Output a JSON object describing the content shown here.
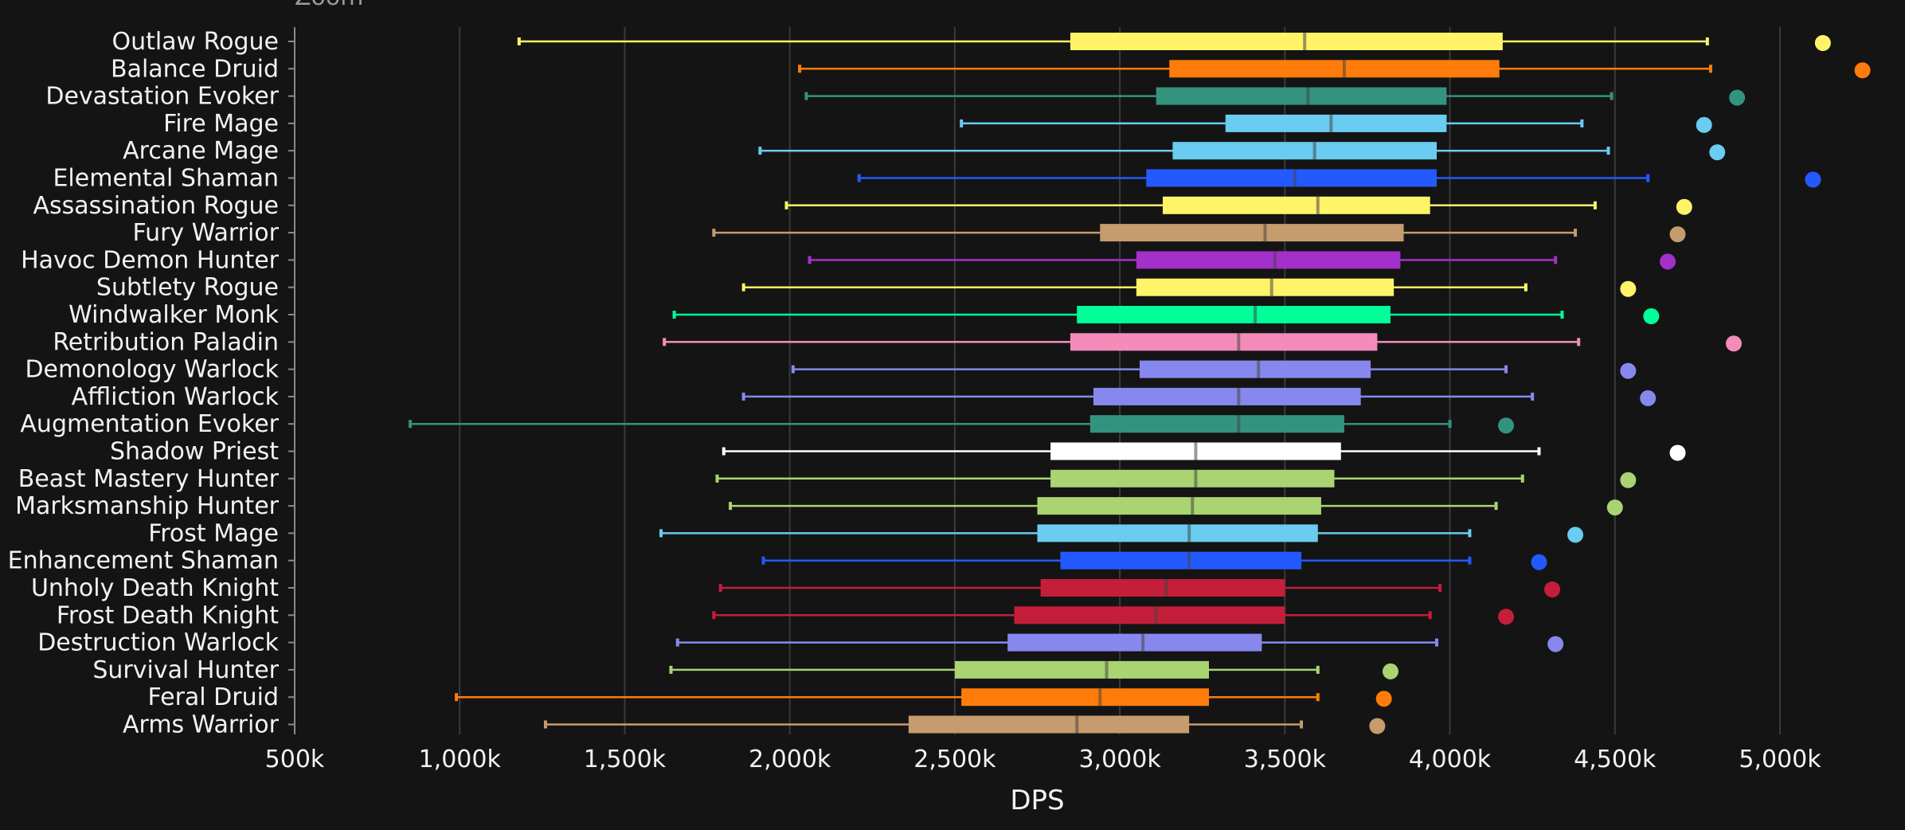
{
  "zoom_label": "Zoom",
  "chart_data": {
    "type": "boxplot",
    "orientation": "horizontal",
    "xlabel": "DPS",
    "xlim": [
      500000,
      5000000
    ],
    "x_ticks": [
      500000,
      1000000,
      1500000,
      2000000,
      2500000,
      3000000,
      3500000,
      4000000,
      4500000,
      5000000
    ],
    "x_tick_labels": [
      "500k",
      "1,000k",
      "1,500k",
      "2,000k",
      "2,500k",
      "3,000k",
      "3,500k",
      "4,000k",
      "4,500k",
      "5,000k"
    ],
    "grid": "vertical",
    "series": [
      {
        "name": "Outlaw Rogue",
        "color": "#FFF468",
        "min": 1180000,
        "q1": 2850000,
        "median": 3560000,
        "q3": 4160000,
        "max": 4780000,
        "outlier": 5130000
      },
      {
        "name": "Balance Druid",
        "color": "#FF7C0A",
        "min": 2030000,
        "q1": 3150000,
        "median": 3680000,
        "q3": 4150000,
        "max": 4790000,
        "outlier": 5250000
      },
      {
        "name": "Devastation Evoker",
        "color": "#33937F",
        "min": 2050000,
        "q1": 3110000,
        "median": 3570000,
        "q3": 3990000,
        "max": 4490000,
        "outlier": 4870000
      },
      {
        "name": "Fire Mage",
        "color": "#69CCF0",
        "min": 2520000,
        "q1": 3320000,
        "median": 3640000,
        "q3": 3990000,
        "max": 4400000,
        "outlier": 4770000
      },
      {
        "name": "Arcane Mage",
        "color": "#69CCF0",
        "min": 1910000,
        "q1": 3160000,
        "median": 3590000,
        "q3": 3960000,
        "max": 4480000,
        "outlier": 4810000
      },
      {
        "name": "Elemental Shaman",
        "color": "#2459FF",
        "min": 2210000,
        "q1": 3080000,
        "median": 3530000,
        "q3": 3960000,
        "max": 4600000,
        "outlier": 5100000
      },
      {
        "name": "Assassination Rogue",
        "color": "#FFF468",
        "min": 1990000,
        "q1": 3130000,
        "median": 3600000,
        "q3": 3940000,
        "max": 4440000,
        "outlier": 4710000
      },
      {
        "name": "Fury Warrior",
        "color": "#C69B6D",
        "min": 1770000,
        "q1": 2940000,
        "median": 3440000,
        "q3": 3860000,
        "max": 4380000,
        "outlier": 4690000
      },
      {
        "name": "Havoc Demon Hunter",
        "color": "#A330C9",
        "min": 2060000,
        "q1": 3050000,
        "median": 3470000,
        "q3": 3850000,
        "max": 4320000,
        "outlier": 4660000
      },
      {
        "name": "Subtlety Rogue",
        "color": "#FFF468",
        "min": 1860000,
        "q1": 3050000,
        "median": 3460000,
        "q3": 3830000,
        "max": 4230000,
        "outlier": 4540000
      },
      {
        "name": "Windwalker Monk",
        "color": "#00FF98",
        "min": 1650000,
        "q1": 2870000,
        "median": 3410000,
        "q3": 3820000,
        "max": 4340000,
        "outlier": 4610000
      },
      {
        "name": "Retribution Paladin",
        "color": "#F48CBA",
        "min": 1620000,
        "q1": 2850000,
        "median": 3360000,
        "q3": 3780000,
        "max": 4390000,
        "outlier": 4860000
      },
      {
        "name": "Demonology Warlock",
        "color": "#8788EE",
        "min": 2010000,
        "q1": 3060000,
        "median": 3420000,
        "q3": 3760000,
        "max": 4170000,
        "outlier": 4540000
      },
      {
        "name": "Affliction Warlock",
        "color": "#8788EE",
        "min": 1860000,
        "q1": 2920000,
        "median": 3360000,
        "q3": 3730000,
        "max": 4250000,
        "outlier": 4600000
      },
      {
        "name": "Augmentation Evoker",
        "color": "#33937F",
        "min": 850000,
        "q1": 2910000,
        "median": 3360000,
        "q3": 3680000,
        "max": 4000000,
        "outlier": 4170000
      },
      {
        "name": "Shadow Priest",
        "color": "#FFFFFF",
        "min": 1800000,
        "q1": 2790000,
        "median": 3230000,
        "q3": 3670000,
        "max": 4270000,
        "outlier": 4690000
      },
      {
        "name": "Beast Mastery Hunter",
        "color": "#AAD372",
        "min": 1780000,
        "q1": 2790000,
        "median": 3230000,
        "q3": 3650000,
        "max": 4220000,
        "outlier": 4540000
      },
      {
        "name": "Marksmanship Hunter",
        "color": "#AAD372",
        "min": 1820000,
        "q1": 2750000,
        "median": 3220000,
        "q3": 3610000,
        "max": 4140000,
        "outlier": 4500000
      },
      {
        "name": "Frost Mage",
        "color": "#69CCF0",
        "min": 1610000,
        "q1": 2750000,
        "median": 3210000,
        "q3": 3600000,
        "max": 4060000,
        "outlier": 4380000
      },
      {
        "name": "Enhancement Shaman",
        "color": "#2459FF",
        "min": 1920000,
        "q1": 2820000,
        "median": 3210000,
        "q3": 3550000,
        "max": 4060000,
        "outlier": 4270000
      },
      {
        "name": "Unholy Death Knight",
        "color": "#C41E3A",
        "min": 1790000,
        "q1": 2760000,
        "median": 3140000,
        "q3": 3500000,
        "max": 3970000,
        "outlier": 4310000
      },
      {
        "name": "Frost Death Knight",
        "color": "#C41E3A",
        "min": 1770000,
        "q1": 2680000,
        "median": 3110000,
        "q3": 3500000,
        "max": 3940000,
        "outlier": 4170000
      },
      {
        "name": "Destruction Warlock",
        "color": "#8788EE",
        "min": 1660000,
        "q1": 2660000,
        "median": 3070000,
        "q3": 3430000,
        "max": 3960000,
        "outlier": 4320000
      },
      {
        "name": "Survival Hunter",
        "color": "#AAD372",
        "min": 1640000,
        "q1": 2500000,
        "median": 2960000,
        "q3": 3270000,
        "max": 3600000,
        "outlier": 3820000
      },
      {
        "name": "Feral Druid",
        "color": "#FF7C0A",
        "min": 990000,
        "q1": 2520000,
        "median": 2940000,
        "q3": 3270000,
        "max": 3600000,
        "outlier": 3800000
      },
      {
        "name": "Arms Warrior",
        "color": "#C69B6D",
        "min": 1260000,
        "q1": 2360000,
        "median": 2870000,
        "q3": 3210000,
        "max": 3550000,
        "outlier": 3780000
      }
    ]
  }
}
